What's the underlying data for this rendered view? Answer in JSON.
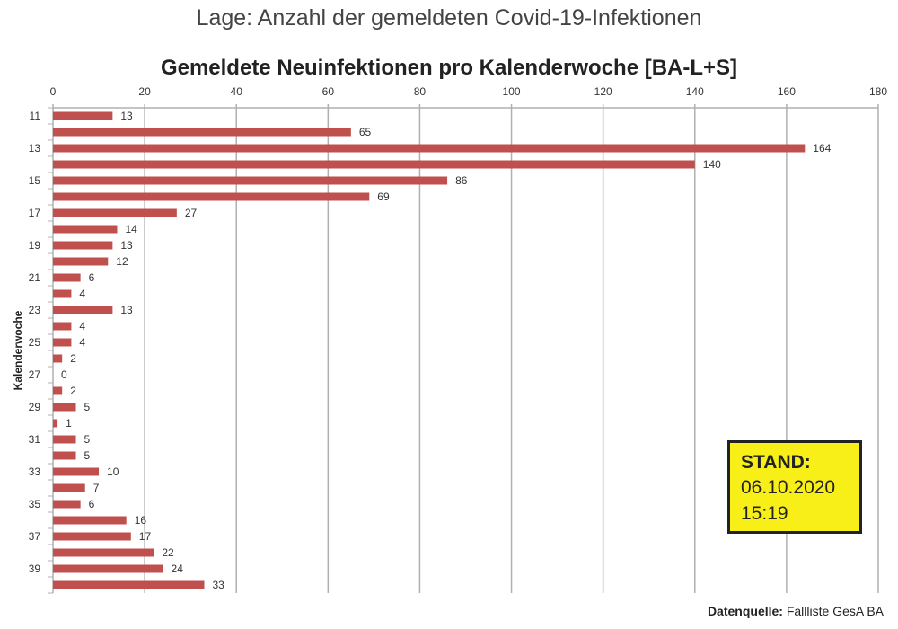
{
  "page_title": "Lage: Anzahl der gemeldeten Covid-19-Infektionen",
  "stand": {
    "label": "STAND:",
    "date": "06.10.2020",
    "time": "15:19"
  },
  "source": {
    "label": "Datenquelle:",
    "value": "Fallliste GesA BA"
  },
  "colors": {
    "bar": "#c0504d",
    "stand_bg": "#f7ef17",
    "grid": "#b0b0b0"
  },
  "chart_data": {
    "type": "bar",
    "orientation": "horizontal",
    "title": "Gemeldete Neuinfektionen pro Kalenderwoche [BA-L+S]",
    "xlabel": "",
    "ylabel": "Kalenderwoche",
    "xlim": [
      0,
      180
    ],
    "xticks": [
      0,
      20,
      40,
      60,
      80,
      100,
      120,
      140,
      160,
      180
    ],
    "grid": true,
    "categories": [
      11,
      12,
      13,
      14,
      15,
      16,
      17,
      18,
      19,
      20,
      21,
      22,
      23,
      24,
      25,
      26,
      27,
      28,
      29,
      30,
      31,
      32,
      33,
      34,
      35,
      36,
      37,
      38,
      39,
      40
    ],
    "category_tick_labels_shown": [
      11,
      13,
      15,
      17,
      19,
      21,
      23,
      25,
      27,
      29,
      31,
      33,
      35,
      37,
      39
    ],
    "values": [
      13,
      65,
      164,
      140,
      86,
      69,
      27,
      14,
      13,
      12,
      6,
      4,
      13,
      4,
      4,
      2,
      0,
      2,
      5,
      1,
      5,
      5,
      10,
      7,
      6,
      16,
      17,
      22,
      24,
      33
    ]
  }
}
